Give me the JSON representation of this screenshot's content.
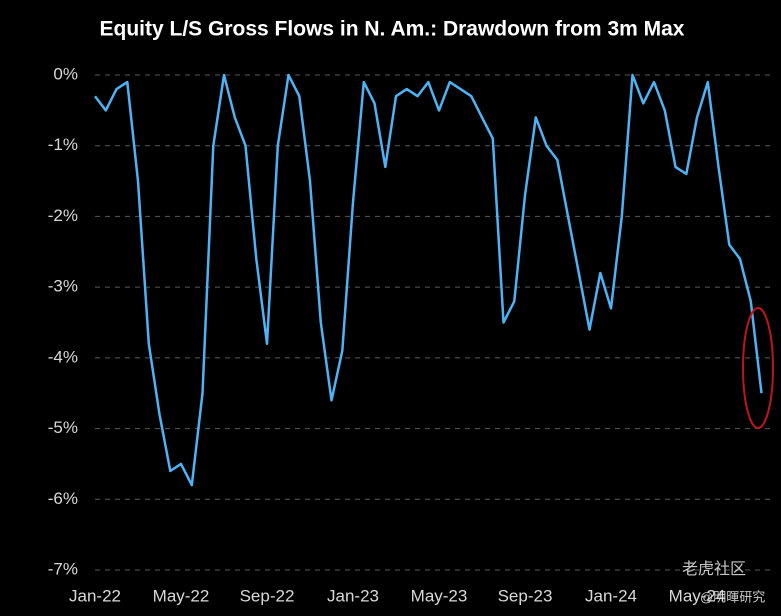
{
  "chart_data": {
    "type": "line",
    "title": "Equity L/S Gross Flows in N. Am.: Drawdown from 3m Max",
    "categories": [
      "Jan-22",
      null,
      null,
      null,
      null,
      null,
      null,
      null,
      "May-22",
      null,
      null,
      null,
      null,
      null,
      null,
      null,
      "Sep-22",
      null,
      null,
      null,
      null,
      null,
      null,
      null,
      "Jan-23",
      null,
      null,
      null,
      null,
      null,
      null,
      null,
      "May-23",
      null,
      null,
      null,
      null,
      null,
      null,
      null,
      "Sep-23",
      null,
      null,
      null,
      null,
      null,
      null,
      null,
      "Jan-24",
      null,
      null,
      null,
      null,
      null,
      null,
      null,
      "May-24",
      null,
      null,
      null,
      null,
      null,
      null
    ],
    "series": [
      {
        "color": "#4db3f5",
        "values": [
          -0.3,
          -0.5,
          -0.2,
          -0.1,
          -1.5,
          -3.8,
          -4.8,
          -5.6,
          -5.5,
          -5.8,
          -4.5,
          -1.0,
          0,
          -0.6,
          -1.0,
          -2.6,
          -3.8,
          -1.0,
          0,
          -0.3,
          -1.5,
          -3.5,
          -4.6,
          -3.9,
          -1.8,
          -0.1,
          -0.4,
          -1.3,
          -0.3,
          -0.2,
          -0.3,
          -0.1,
          -0.5,
          -0.1,
          -0.2,
          -0.3,
          -0.6,
          -0.9,
          -3.5,
          -3.2,
          -1.7,
          -0.6,
          -1.0,
          -1.2,
          -2.0,
          -2.8,
          -3.6,
          -2.8,
          -3.3,
          -2.0,
          0,
          -0.4,
          -0.1,
          -0.5,
          -1.3,
          -1.4,
          -0.6,
          -0.1,
          -1.3,
          -2.4,
          -2.6,
          -3.2,
          -4.5
        ]
      }
    ],
    "ylim": [
      -7,
      0
    ],
    "yticks": [
      {
        "value": 0,
        "label": "0%"
      },
      {
        "value": -1,
        "label": "-1%"
      },
      {
        "value": -2,
        "label": "-2%"
      },
      {
        "value": -3,
        "label": "-3%"
      },
      {
        "value": -4,
        "label": "-4%"
      },
      {
        "value": -5,
        "label": "-5%"
      },
      {
        "value": -6,
        "label": "-6%"
      },
      {
        "value": -7,
        "label": "-7%"
      }
    ],
    "grid": true
  },
  "watermark": {
    "brand": "老虎社区",
    "author": "@明暉研究"
  }
}
